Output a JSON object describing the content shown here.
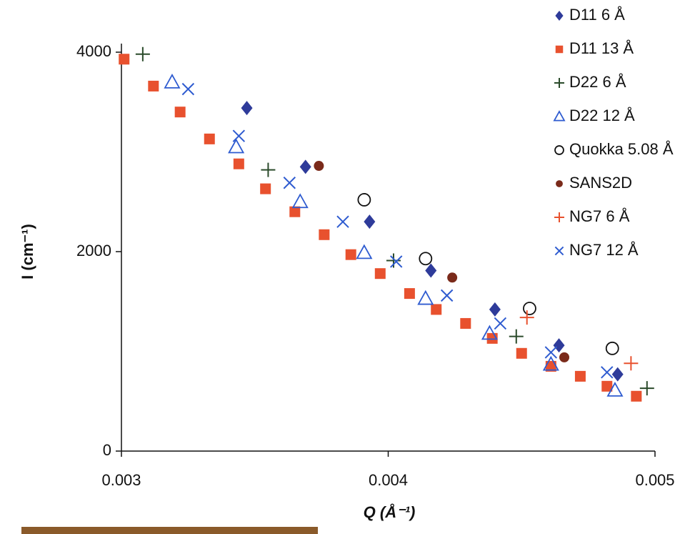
{
  "chart_data": {
    "type": "scatter",
    "xlabel": "Q (Å⁻¹)",
    "ylabel": "I (cm⁻¹)",
    "xlim": [
      0.003,
      0.005
    ],
    "ylim": [
      0,
      4000
    ],
    "xticks": [
      0.003,
      0.004,
      0.005
    ],
    "yticks": [
      0,
      2000,
      4000
    ],
    "grid": false,
    "legend": "top-right",
    "series": [
      {
        "name": "D11 6 Å",
        "color": "#2e3b9a",
        "marker": "diamond",
        "x": [
          0.00347,
          0.00369,
          0.00393,
          0.00416,
          0.0044,
          0.00464,
          0.00486
        ],
        "values": [
          3440,
          2850,
          2300,
          1810,
          1420,
          1060,
          770
        ]
      },
      {
        "name": "D11 13 Å",
        "color": "#e8512e",
        "marker": "square",
        "x": [
          0.00301,
          0.00312,
          0.00322,
          0.00333,
          0.00344,
          0.00354,
          0.00365,
          0.00376,
          0.00386,
          0.00397,
          0.00408,
          0.00418,
          0.00429,
          0.00439,
          0.0045,
          0.00461,
          0.00472,
          0.00482,
          0.00493
        ],
        "values": [
          3930,
          3660,
          3400,
          3130,
          2880,
          2630,
          2400,
          2170,
          1970,
          1780,
          1580,
          1420,
          1280,
          1130,
          980,
          850,
          750,
          650,
          550
        ]
      },
      {
        "name": "D22 6 Å",
        "color": "#2a4a2a",
        "marker": "plus",
        "x": [
          0.00308,
          0.00355,
          0.00402,
          0.00448,
          0.00497
        ],
        "values": [
          3980,
          2820,
          1910,
          1150,
          630
        ]
      },
      {
        "name": "D22 12 Å",
        "color": "#2e5bd0",
        "marker": "triangle",
        "x": [
          0.00319,
          0.00343,
          0.00367,
          0.00391,
          0.00414,
          0.00438,
          0.00461,
          0.00485
        ],
        "values": [
          3700,
          3050,
          2500,
          1990,
          1530,
          1180,
          870,
          610
        ]
      },
      {
        "name": "Quokka 5.08 Å",
        "color": "#111111",
        "marker": "circle-open",
        "x": [
          0.00391,
          0.00414,
          0.00453,
          0.00484
        ],
        "values": [
          2520,
          1930,
          1430,
          1030
        ]
      },
      {
        "name": "SANS2D",
        "color": "#7a2a1a",
        "marker": "circle",
        "x": [
          0.00374,
          0.00424,
          0.00466
        ],
        "values": [
          2860,
          1740,
          940
        ]
      },
      {
        "name": "NG7 6 Å",
        "color": "#e8512e",
        "marker": "plus",
        "x": [
          0.00452,
          0.00491
        ],
        "values": [
          1340,
          880
        ]
      },
      {
        "name": "NG7 12 Å",
        "color": "#2e5bd0",
        "marker": "cross",
        "x": [
          0.00325,
          0.00344,
          0.00363,
          0.00383,
          0.00403,
          0.00422,
          0.00442,
          0.00461,
          0.00482
        ],
        "values": [
          3630,
          3160,
          2690,
          2300,
          1900,
          1560,
          1280,
          990,
          790
        ]
      }
    ]
  }
}
